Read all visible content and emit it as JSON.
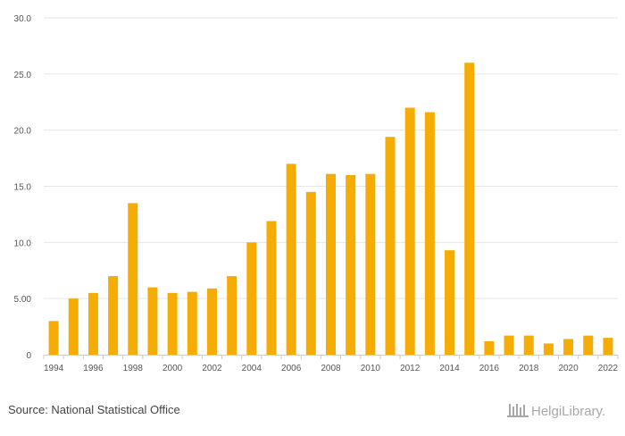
{
  "chart_data": {
    "type": "bar",
    "x": [
      1994,
      1995,
      1996,
      1997,
      1998,
      1999,
      2000,
      2001,
      2002,
      2003,
      2004,
      2005,
      2006,
      2007,
      2008,
      2009,
      2010,
      2011,
      2012,
      2013,
      2014,
      2015,
      2016,
      2017,
      2018,
      2019,
      2020,
      2021,
      2022
    ],
    "x_tick_labels": [
      "1994",
      "1996",
      "1998",
      "2000",
      "2002",
      "2004",
      "2006",
      "2008",
      "2010",
      "2012",
      "2014",
      "2016",
      "2018",
      "2020",
      "2022"
    ],
    "series": [
      {
        "color": "#f5ac05",
        "values": [
          3.0,
          5.0,
          5.5,
          7.0,
          13.5,
          6.0,
          5.5,
          5.6,
          5.9,
          7.0,
          10.0,
          11.9,
          17.0,
          14.5,
          16.1,
          16.0,
          16.1,
          19.4,
          22.0,
          21.6,
          9.3,
          26.0,
          1.2,
          1.7,
          1.7,
          1.0,
          1.4,
          1.7,
          1.5
        ]
      }
    ],
    "ylim": [
      0,
      30
    ],
    "y_ticks": [
      0,
      5,
      10,
      15,
      20,
      25,
      30
    ],
    "y_tick_labels": [
      "0",
      "5.00",
      "10.0",
      "15.0",
      "20.0",
      "25.0",
      "30.0"
    ],
    "grid": true,
    "title": "",
    "xlabel": "",
    "ylabel": ""
  },
  "footer": {
    "source": "Source: National Statistical Office",
    "brand": "HelgiLibrary."
  },
  "colors": {
    "bar": "#f5ac05",
    "grid": "#e6e6e6",
    "axis": "#cccccc",
    "brand": "#a8a8a8"
  },
  "icons": {
    "brand_logo": "helgi-library-logo"
  }
}
